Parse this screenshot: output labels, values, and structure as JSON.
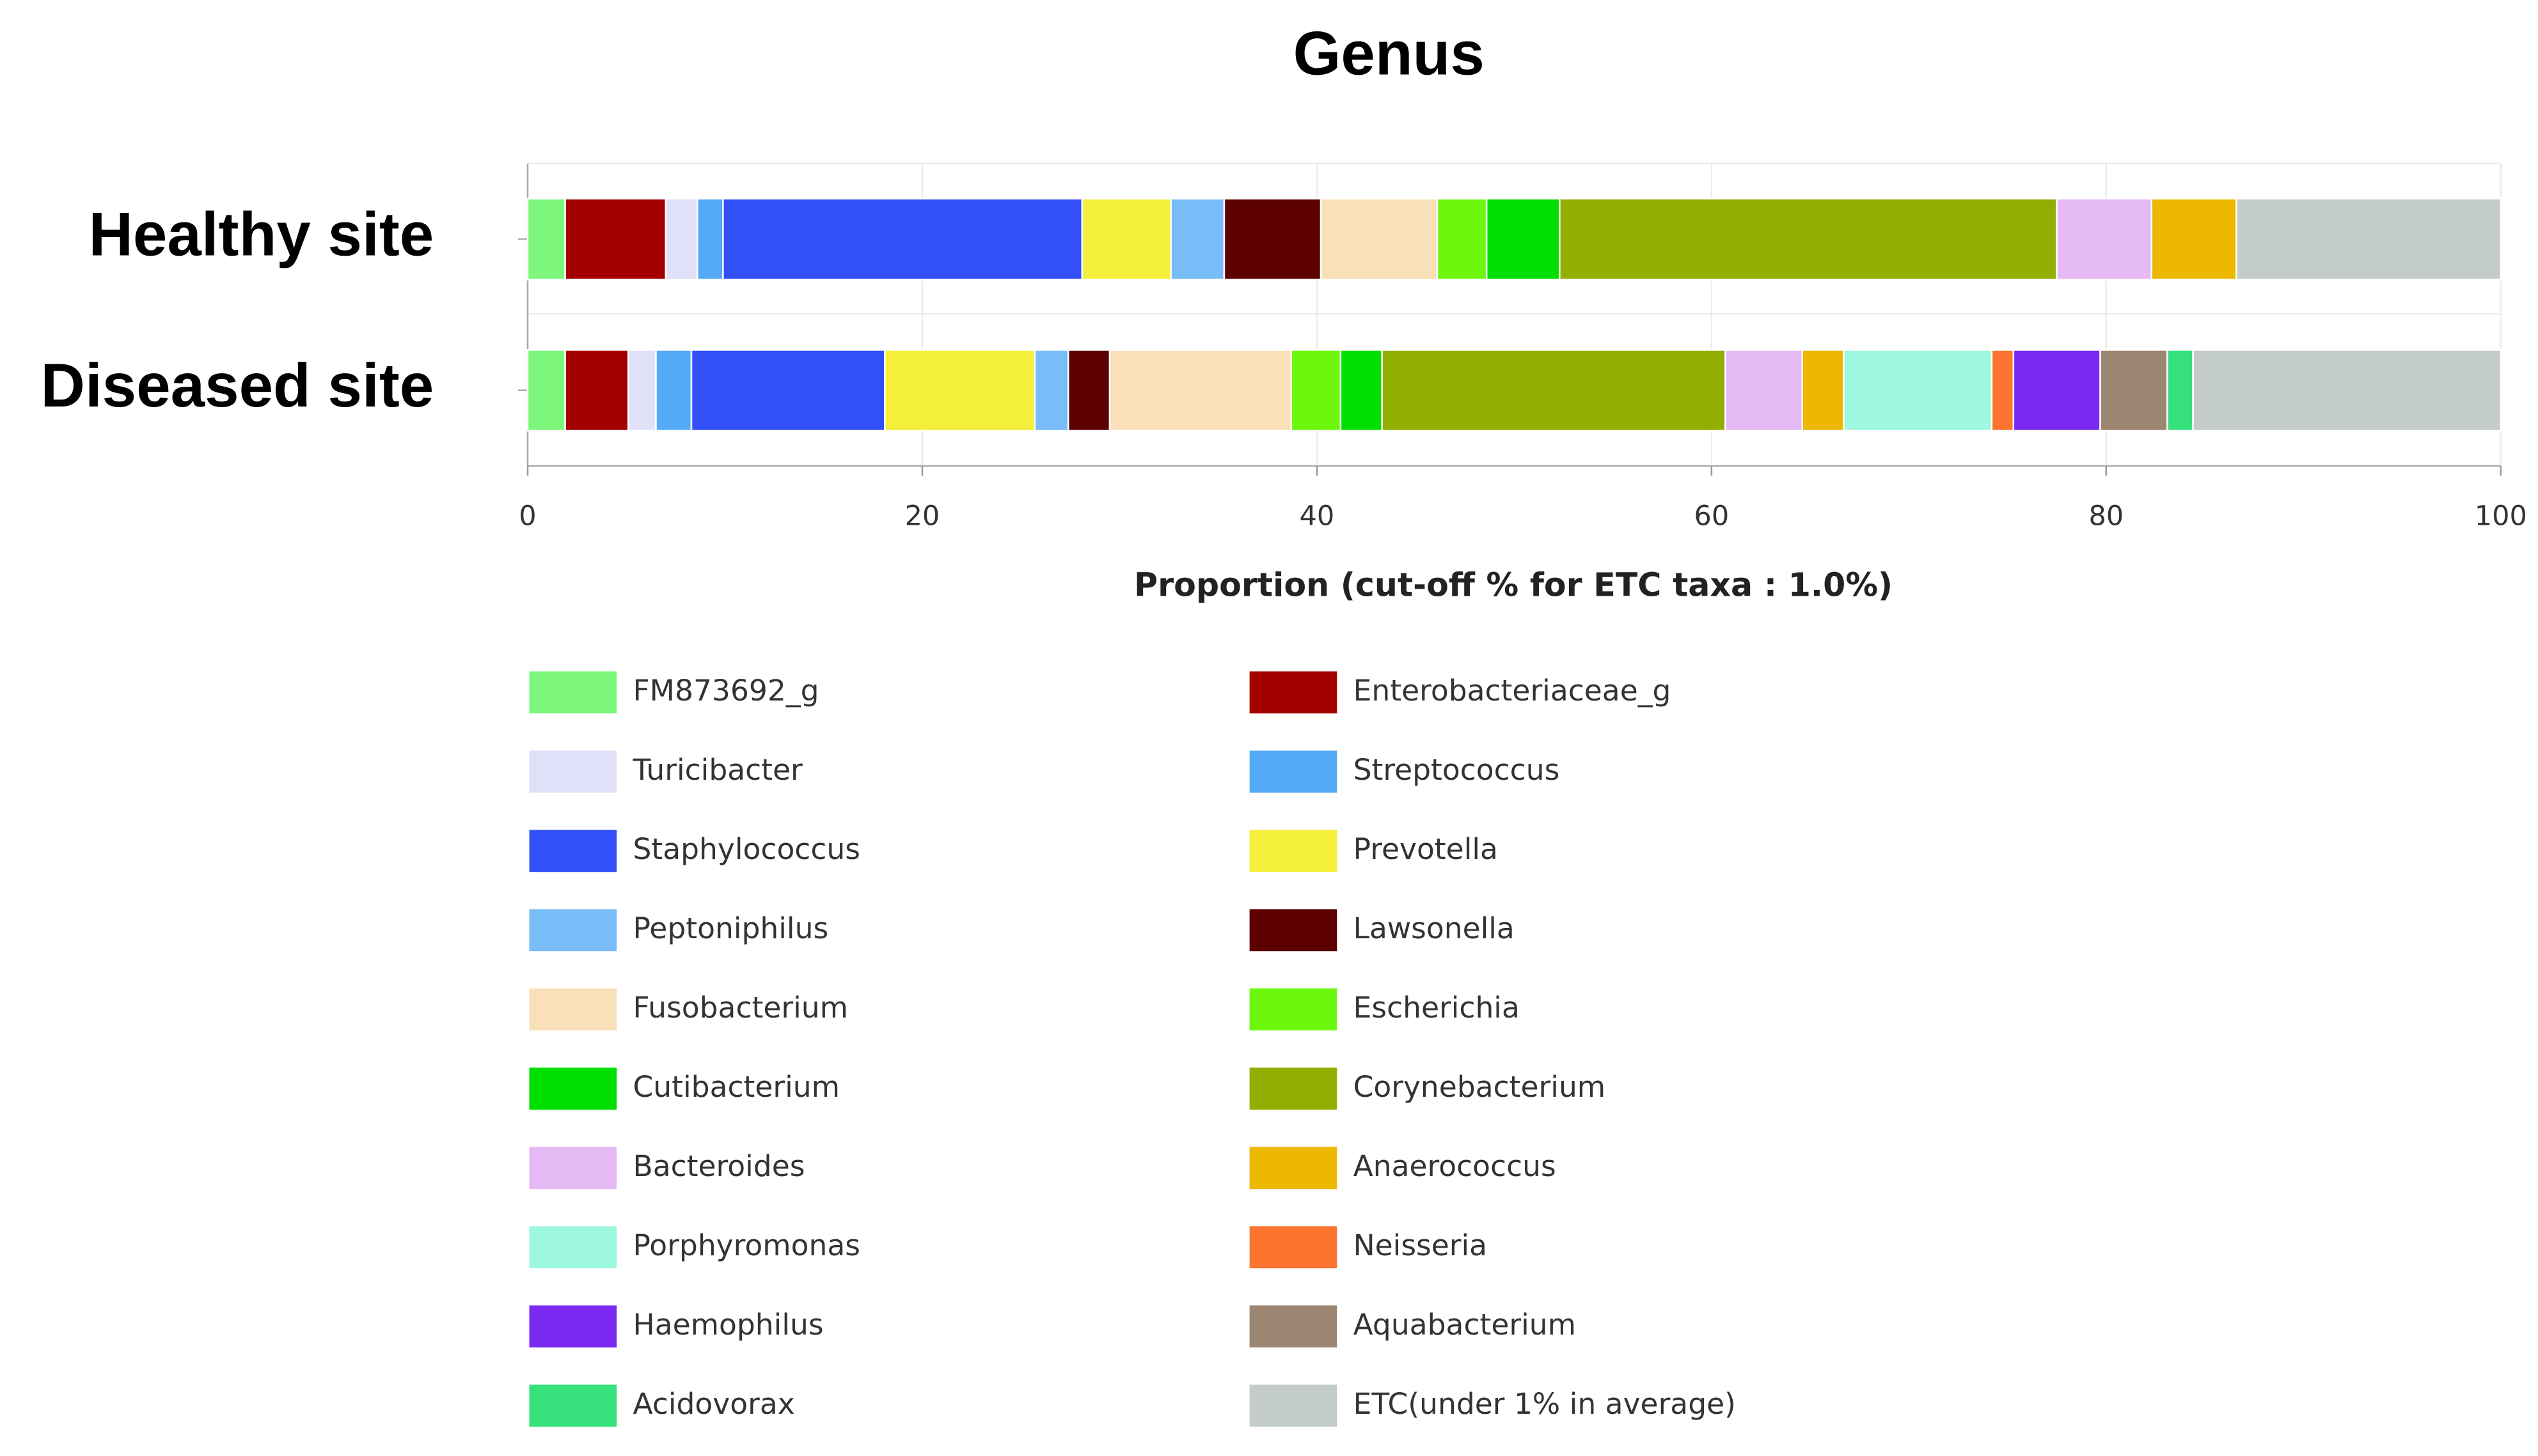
{
  "chart_data": {
    "type": "stacked-barh",
    "title": "Genus",
    "xlabel": "Proportion (cut-off % for ETC taxa : 1.0%)",
    "categories": [
      "Healthy site",
      "Diseased site"
    ],
    "xlim": [
      0,
      100
    ],
    "xticks": [
      0,
      20,
      40,
      60,
      80,
      100
    ],
    "grid": true,
    "legend": "bottom",
    "series": [
      {
        "name": "FM873692_g",
        "color": "#7cf77c",
        "values": [
          1.9,
          1.9
        ]
      },
      {
        "name": "Enterobacteriaceae_g",
        "color": "#a50000",
        "values": [
          5.1,
          3.2
        ]
      },
      {
        "name": "Turicibacter",
        "color": "#e0e0f8",
        "values": [
          1.6,
          1.4
        ]
      },
      {
        "name": "Streptococcus",
        "color": "#55aaf5",
        "values": [
          1.3,
          1.8
        ]
      },
      {
        "name": "Staphylococcus",
        "color": "#3350f8",
        "values": [
          18.2,
          9.8
        ]
      },
      {
        "name": "Prevotella",
        "color": "#f3ef3a",
        "values": [
          4.5,
          7.6
        ]
      },
      {
        "name": "Peptoniphilus",
        "color": "#78bdf7",
        "values": [
          2.7,
          1.7
        ]
      },
      {
        "name": "Lawsonella",
        "color": "#5c0000",
        "values": [
          4.9,
          2.1
        ]
      },
      {
        "name": "Fusobacterium",
        "color": "#f9e0b8",
        "values": [
          5.9,
          9.2
        ]
      },
      {
        "name": "Escherichia",
        "color": "#6cf70c",
        "values": [
          2.5,
          2.5
        ]
      },
      {
        "name": "Cutibacterium",
        "color": "#00e000",
        "values": [
          3.7,
          2.1
        ]
      },
      {
        "name": "Corynebacterium",
        "color": "#92ae00",
        "values": [
          25.2,
          17.4
        ]
      },
      {
        "name": "Bacteroides",
        "color": "#e6baf4",
        "values": [
          4.8,
          3.9
        ]
      },
      {
        "name": "Anaerococcus",
        "color": "#ecb800",
        "values": [
          4.3,
          2.1
        ]
      },
      {
        "name": "Porphyromonas",
        "color": "#9ef7df",
        "values": [
          0,
          7.5
        ]
      },
      {
        "name": "Neisseria",
        "color": "#fc7430",
        "values": [
          0,
          1.1
        ]
      },
      {
        "name": "Haemophilus",
        "color": "#7a2af0",
        "values": [
          0,
          4.4
        ]
      },
      {
        "name": "Aquabacterium",
        "color": "#9c8571",
        "values": [
          0,
          3.4
        ]
      },
      {
        "name": "Acidovorax",
        "color": "#36e07a",
        "values": [
          0,
          1.3
        ]
      },
      {
        "name": "ETC(under 1% in average)",
        "color": "#c4ccc8",
        "values": [
          13.4,
          15.6
        ]
      }
    ]
  }
}
